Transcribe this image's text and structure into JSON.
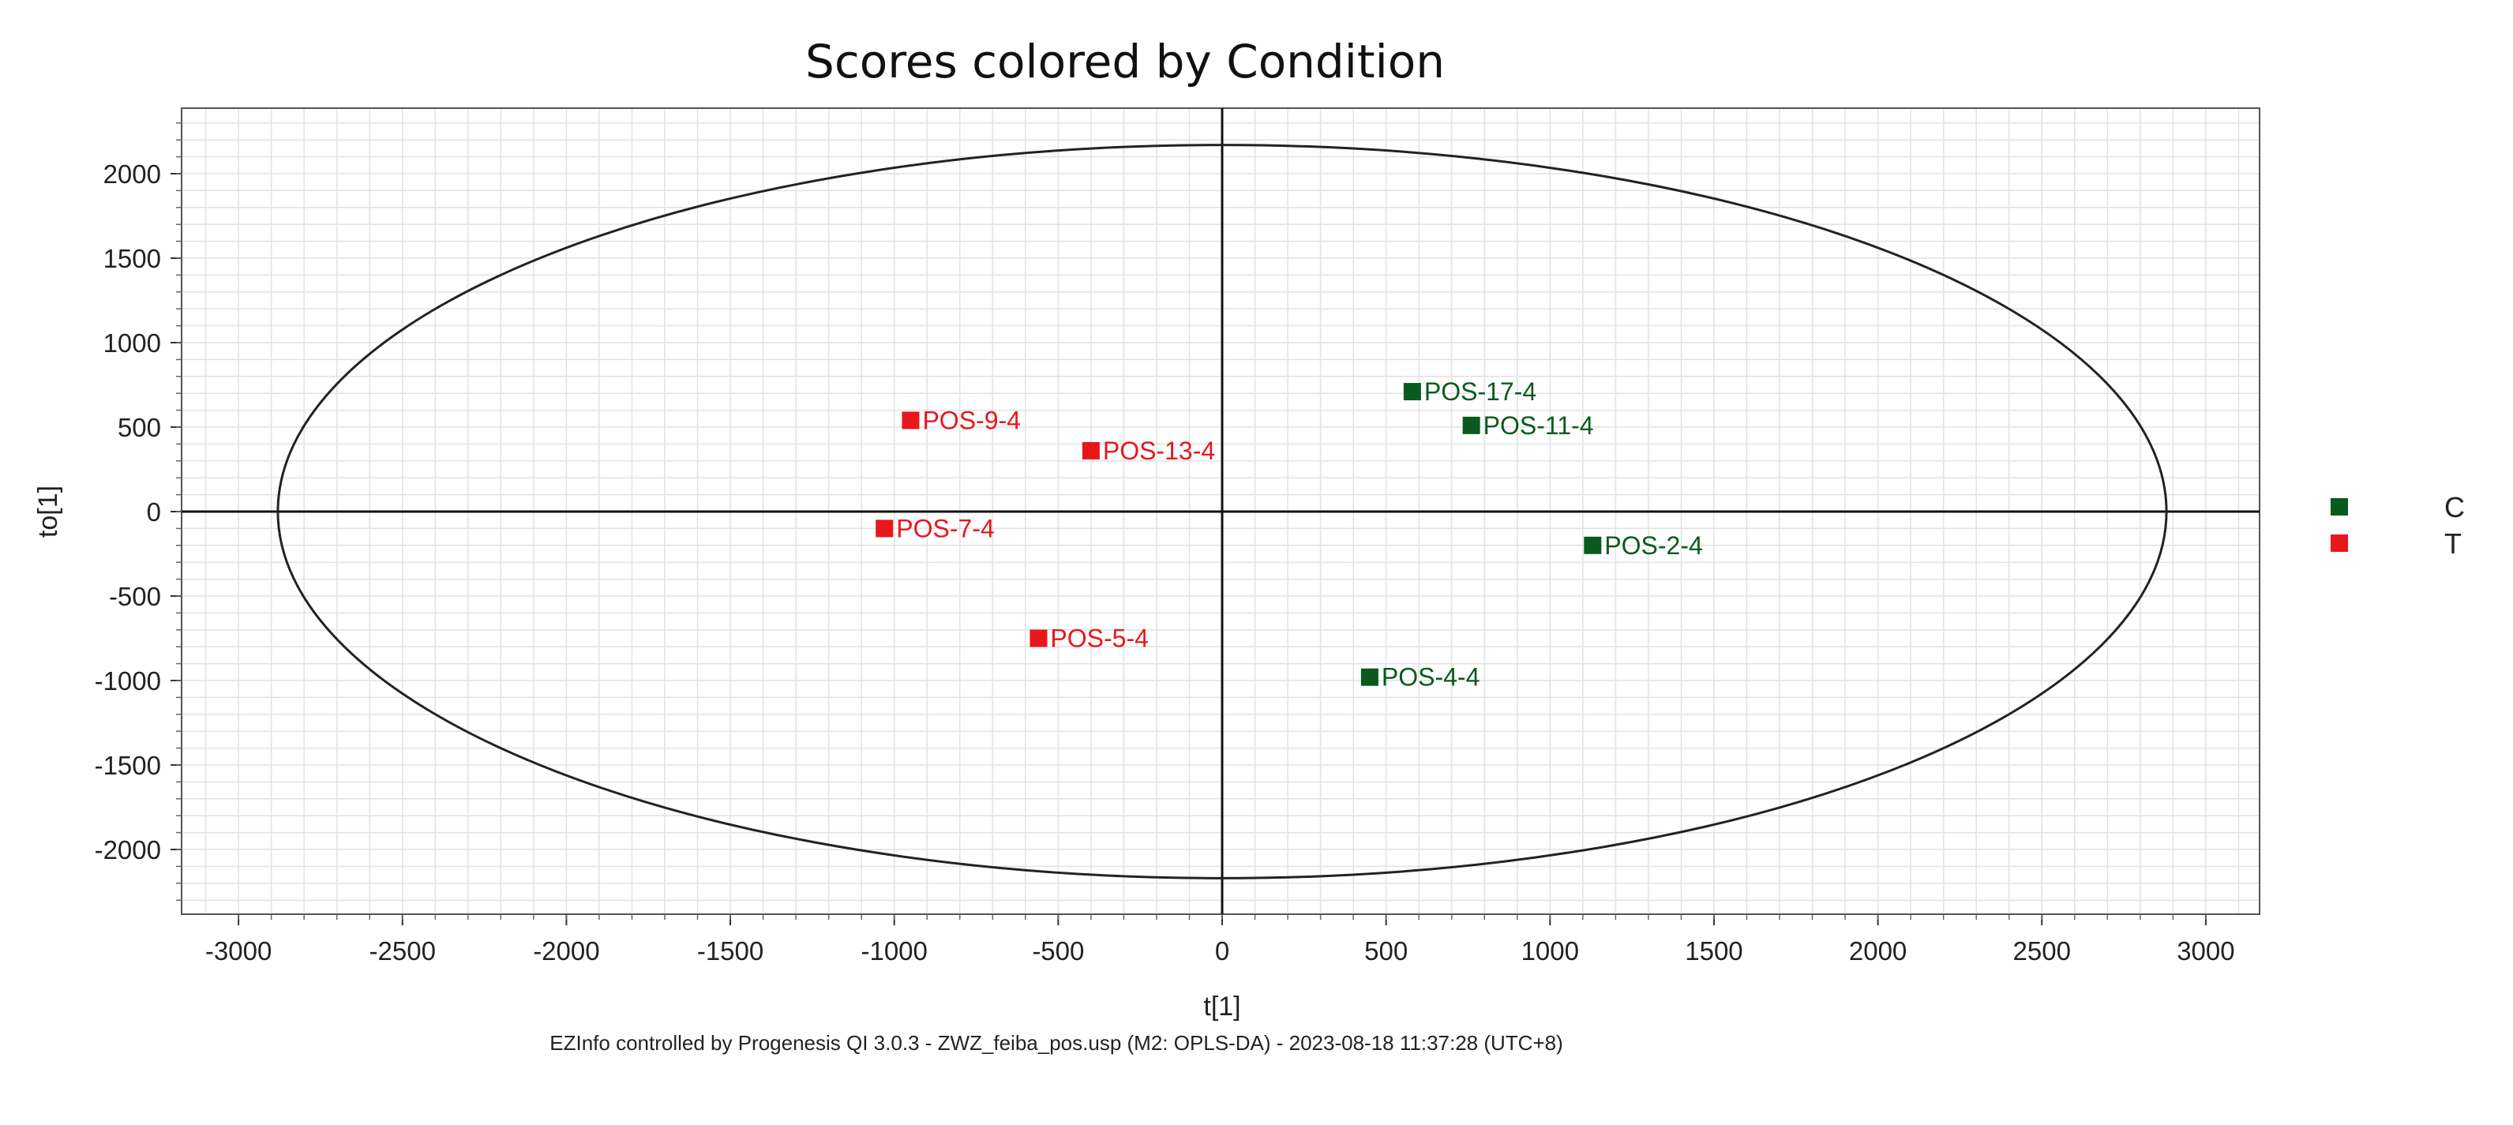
{
  "chart_data": {
    "type": "scatter",
    "title": "Scores colored by Condition",
    "xlabel": "t[1]",
    "ylabel": "to[1]",
    "xlim": [
      -3000,
      3000
    ],
    "ylim": [
      -2000,
      2000
    ],
    "x_ticks": [
      "-3000",
      "-2500",
      "-2000",
      "-1500",
      "-1000",
      "-500",
      "0",
      "500",
      "1000",
      "1500",
      "2000",
      "2500",
      "3000"
    ],
    "y_ticks": [
      "2000",
      "1500",
      "1000",
      "500",
      "0",
      "-500",
      "-1000",
      "-1500",
      "-2000"
    ],
    "grid": true,
    "ellipse": {
      "rx": 2880,
      "ry": 2170
    },
    "legend_position": "right",
    "series": [
      {
        "name": "C",
        "color": "#0a5a1e",
        "points": [
          {
            "label": "POS-17-4",
            "x": 580,
            "y": 710
          },
          {
            "label": "POS-11-4",
            "x": 760,
            "y": 510
          },
          {
            "label": "POS-2-4",
            "x": 1130,
            "y": -200
          },
          {
            "label": "POS-4-4",
            "x": 450,
            "y": -980
          }
        ]
      },
      {
        "name": "T",
        "color": "#e8171c",
        "points": [
          {
            "label": "POS-9-4",
            "x": -950,
            "y": 540
          },
          {
            "label": "POS-13-4",
            "x": -400,
            "y": 360
          },
          {
            "label": "POS-7-4",
            "x": -1030,
            "y": -100
          },
          {
            "label": "POS-5-4",
            "x": -560,
            "y": -750
          }
        ]
      }
    ],
    "footer": "EZInfo controlled by  Progenesis QI 3.0.3 - ZWZ_feiba_pos.usp (M2: OPLS-DA) - 2023-08-18 11:37:28 (UTC+8)"
  }
}
